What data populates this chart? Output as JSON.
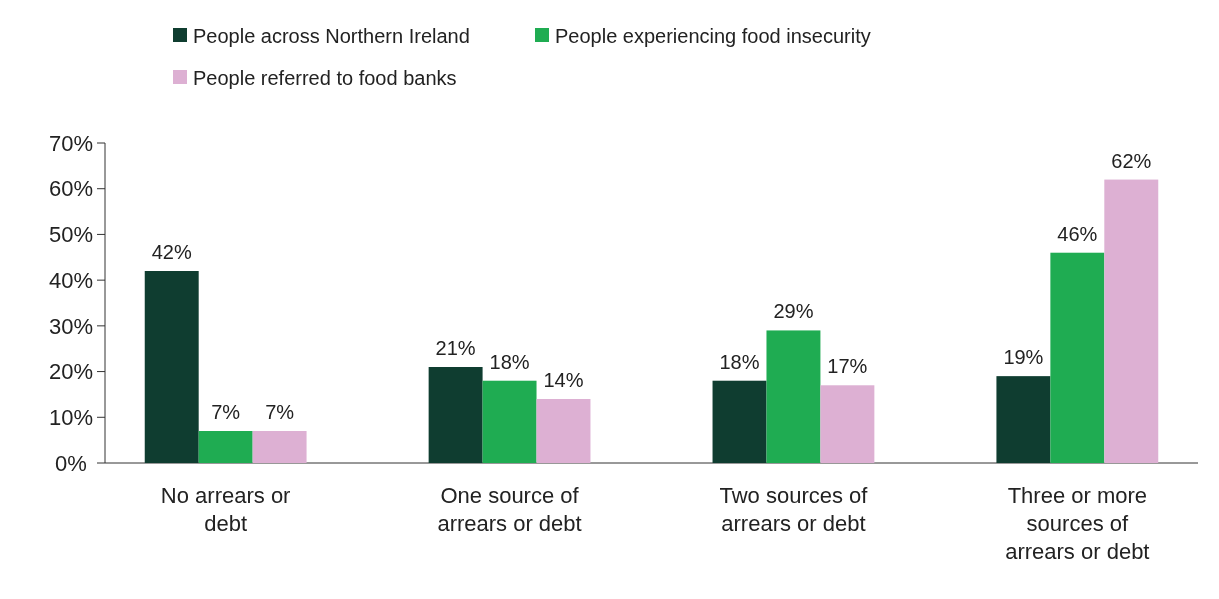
{
  "chart_data": {
    "type": "bar",
    "categories": [
      "No arrears or debt",
      "One source of arrears or debt",
      "Two sources of arrears or debt",
      "Three or more sources of arrears or debt"
    ],
    "series": [
      {
        "name": "People across Northern Ireland",
        "color": "#0f3d30",
        "values": [
          42,
          21,
          18,
          19
        ],
        "value_labels": [
          "42%",
          "21%",
          "18%",
          "19%"
        ]
      },
      {
        "name": "People experiencing food insecurity",
        "color": "#1fac52",
        "values": [
          7,
          18,
          29,
          46
        ],
        "value_labels": [
          "7%",
          "18%",
          "29%",
          "46%"
        ]
      },
      {
        "name": "People referred to food banks",
        "color": "#ddb0d3",
        "values": [
          7,
          14,
          17,
          62
        ],
        "value_labels": [
          "7%",
          "14%",
          "17%",
          "62%"
        ]
      }
    ],
    "ylim": [
      0,
      70
    ],
    "yticks": [
      {
        "value": 0,
        "label": "0%"
      },
      {
        "value": 10,
        "label": "10%"
      },
      {
        "value": 20,
        "label": "20%"
      },
      {
        "value": 30,
        "label": "30%"
      },
      {
        "value": 40,
        "label": "40%"
      },
      {
        "value": 50,
        "label": "50%"
      },
      {
        "value": 60,
        "label": "60%"
      },
      {
        "value": 70,
        "label": "70%"
      }
    ],
    "grid": false,
    "legend": "top left"
  }
}
